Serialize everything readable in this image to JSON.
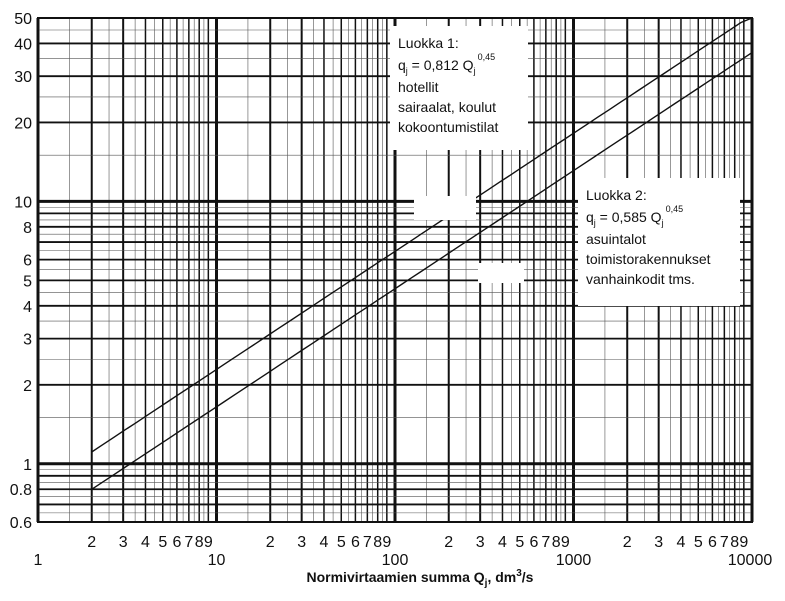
{
  "chart_data": {
    "type": "line",
    "x_scale": "log",
    "y_scale": "log",
    "xlim": [
      1,
      10000
    ],
    "ylim": [
      0.6,
      50
    ],
    "grid": true,
    "xlabel_main": "Normivirtaamien summa Q",
    "xlabel_sub": "j",
    "xlabel_unit": ", dm",
    "xlabel_sup": "3",
    "xlabel_end": "/s",
    "major_x_labels": [
      "1",
      "10",
      "100",
      "1000",
      "10000"
    ],
    "minor_x_labels": [
      "2",
      "3",
      "4",
      "5",
      "6",
      "7",
      "8",
      "9"
    ],
    "y_tick_labels": [
      {
        "v": 50,
        "t": "50"
      },
      {
        "v": 40,
        "t": "40"
      },
      {
        "v": 30,
        "t": "30"
      },
      {
        "v": 20,
        "t": "20"
      },
      {
        "v": 10,
        "t": "10"
      },
      {
        "v": 8,
        "t": "8"
      },
      {
        "v": 6,
        "t": "6"
      },
      {
        "v": 5,
        "t": "5"
      },
      {
        "v": 4,
        "t": "4"
      },
      {
        "v": 3,
        "t": "3"
      },
      {
        "v": 2,
        "t": "2"
      },
      {
        "v": 1,
        "t": "1"
      },
      {
        "v": 0.8,
        "t": "0.8"
      },
      {
        "v": 0.6,
        "t": "0.6"
      }
    ],
    "series": [
      {
        "coefficient": 0.812,
        "exponent": 0.45,
        "x": [
          2,
          10000
        ],
        "y": [
          1.11,
          51.4
        ],
        "label_lines": [
          "Luokka 1:",
          "q",
          "j",
          " = 0,812 Q",
          "j",
          "0,45",
          "hotellit",
          "sairaalat, koulut",
          "kokoontumistilat"
        ]
      },
      {
        "coefficient": 0.585,
        "exponent": 0.45,
        "x": [
          2,
          10000
        ],
        "y": [
          0.8,
          37.0
        ],
        "label_lines": [
          "Luokka 2:",
          "q",
          "j",
          " = 0,585 Q",
          "j",
          "0,45",
          "asuintalot",
          "toimistorakennukset",
          "vanhainkodit tms."
        ]
      }
    ]
  }
}
